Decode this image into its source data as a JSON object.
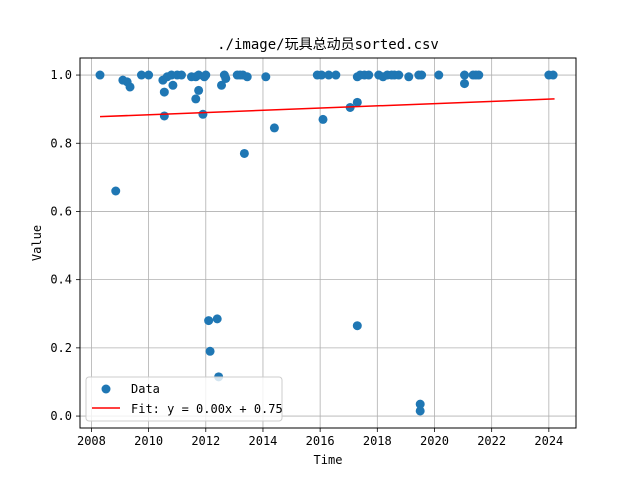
{
  "chart_data": {
    "type": "scatter",
    "title": "./image/玩具总动员sorted.csv",
    "xlabel": "Time",
    "ylabel": "Value",
    "xlim": [
      2007.6,
      2024.95
    ],
    "ylim": [
      -0.035,
      1.05
    ],
    "grid": true,
    "legend_placement": "lower-left",
    "x_ticks": [
      2008,
      2010,
      2012,
      2014,
      2016,
      2018,
      2020,
      2022,
      2024
    ],
    "x_tick_labels": [
      "2008",
      "2010",
      "2012",
      "2014",
      "2016",
      "2018",
      "2020",
      "2022",
      "2024"
    ],
    "y_ticks": [
      0.0,
      0.2,
      0.4,
      0.6,
      0.8,
      1.0
    ],
    "y_tick_labels": [
      "0.0",
      "0.2",
      "0.4",
      "0.6",
      "0.8",
      "1.0"
    ],
    "series": [
      {
        "name": "Data",
        "kind": "scatter",
        "color": "#1f77b4",
        "points": [
          [
            2008.3,
            1.0
          ],
          [
            2008.85,
            0.66
          ],
          [
            2009.1,
            0.985
          ],
          [
            2009.25,
            0.98
          ],
          [
            2009.35,
            0.965
          ],
          [
            2009.75,
            1.0
          ],
          [
            2010.0,
            1.0
          ],
          [
            2010.5,
            0.985
          ],
          [
            2010.55,
            0.88
          ],
          [
            2010.55,
            0.95
          ],
          [
            2010.65,
            0.995
          ],
          [
            2010.8,
            1.0
          ],
          [
            2010.85,
            0.97
          ],
          [
            2011.0,
            1.0
          ],
          [
            2011.15,
            1.0
          ],
          [
            2011.5,
            0.995
          ],
          [
            2011.65,
            0.995
          ],
          [
            2011.65,
            0.93
          ],
          [
            2011.75,
            1.0
          ],
          [
            2011.75,
            0.955
          ],
          [
            2011.9,
            0.885
          ],
          [
            2011.95,
            0.995
          ],
          [
            2012.0,
            1.0
          ],
          [
            2012.1,
            0.28
          ],
          [
            2012.15,
            0.19
          ],
          [
            2012.4,
            0.285
          ],
          [
            2012.45,
            0.115
          ],
          [
            2012.55,
            0.97
          ],
          [
            2012.65,
            1.0
          ],
          [
            2012.7,
            0.99
          ],
          [
            2013.1,
            1.0
          ],
          [
            2013.2,
            1.0
          ],
          [
            2013.3,
            1.0
          ],
          [
            2013.35,
            0.77
          ],
          [
            2013.45,
            0.995
          ],
          [
            2014.1,
            0.995
          ],
          [
            2014.4,
            0.845
          ],
          [
            2015.9,
            1.0
          ],
          [
            2016.05,
            1.0
          ],
          [
            2016.1,
            0.87
          ],
          [
            2016.3,
            1.0
          ],
          [
            2016.55,
            1.0
          ],
          [
            2017.05,
            0.905
          ],
          [
            2017.3,
            0.995
          ],
          [
            2017.3,
            0.92
          ],
          [
            2017.3,
            0.265
          ],
          [
            2017.4,
            1.0
          ],
          [
            2017.55,
            1.0
          ],
          [
            2017.7,
            1.0
          ],
          [
            2018.05,
            1.0
          ],
          [
            2018.2,
            0.995
          ],
          [
            2018.35,
            1.0
          ],
          [
            2018.5,
            1.0
          ],
          [
            2018.6,
            1.0
          ],
          [
            2018.75,
            1.0
          ],
          [
            2019.1,
            0.995
          ],
          [
            2019.45,
            1.0
          ],
          [
            2019.5,
            0.035
          ],
          [
            2019.5,
            0.015
          ],
          [
            2019.55,
            1.0
          ],
          [
            2020.15,
            1.0
          ],
          [
            2021.05,
            0.975
          ],
          [
            2021.05,
            1.0
          ],
          [
            2021.35,
            1.0
          ],
          [
            2021.45,
            1.0
          ],
          [
            2021.55,
            1.0
          ],
          [
            2024.0,
            1.0
          ],
          [
            2024.15,
            1.0
          ]
        ]
      },
      {
        "name": "Fit: y = 0.00x + 0.75",
        "kind": "line",
        "color": "#ff0000",
        "points": [
          [
            2008.3,
            0.878
          ],
          [
            2024.2,
            0.93
          ]
        ]
      }
    ]
  }
}
